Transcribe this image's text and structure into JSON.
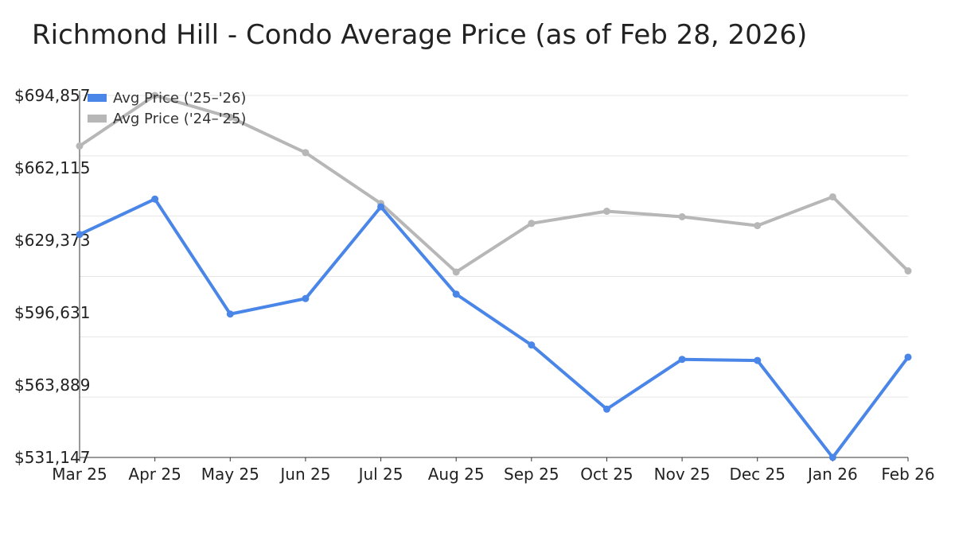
{
  "chart_data": {
    "type": "line",
    "title": "Richmond Hill - Condo Average Price (as of Feb 28, 2026)",
    "xlabel": "",
    "ylabel": "",
    "categories": [
      "Mar 25",
      "Apr 25",
      "May 25",
      "Jun 25",
      "Jul 25",
      "Aug 25",
      "Sep 25",
      "Oct 25",
      "Nov 25",
      "Dec 25",
      "Jan 26",
      "Feb 26"
    ],
    "y_ticks": [
      694857,
      662115,
      629373,
      596631,
      563889,
      531147
    ],
    "y_tick_labels": [
      "$694,857",
      "$662,115",
      "$629,373",
      "$596,631",
      "$563,889",
      "$531,147"
    ],
    "ylim": [
      531147,
      694857
    ],
    "grid": true,
    "legend_position": "top-left",
    "series": [
      {
        "name": "Avg Price ('25–'26)",
        "color": "#4a86e8",
        "values": [
          632000,
          648000,
          596000,
          603000,
          644500,
          605000,
          582000,
          553000,
          575500,
          575000,
          531147,
          576500
        ]
      },
      {
        "name": "Avg Price ('24–'25)",
        "color": "#b7b7b7",
        "values": [
          672000,
          694857,
          685000,
          669000,
          646000,
          615000,
          637000,
          642500,
          640000,
          636000,
          649000,
          615500
        ]
      }
    ]
  }
}
